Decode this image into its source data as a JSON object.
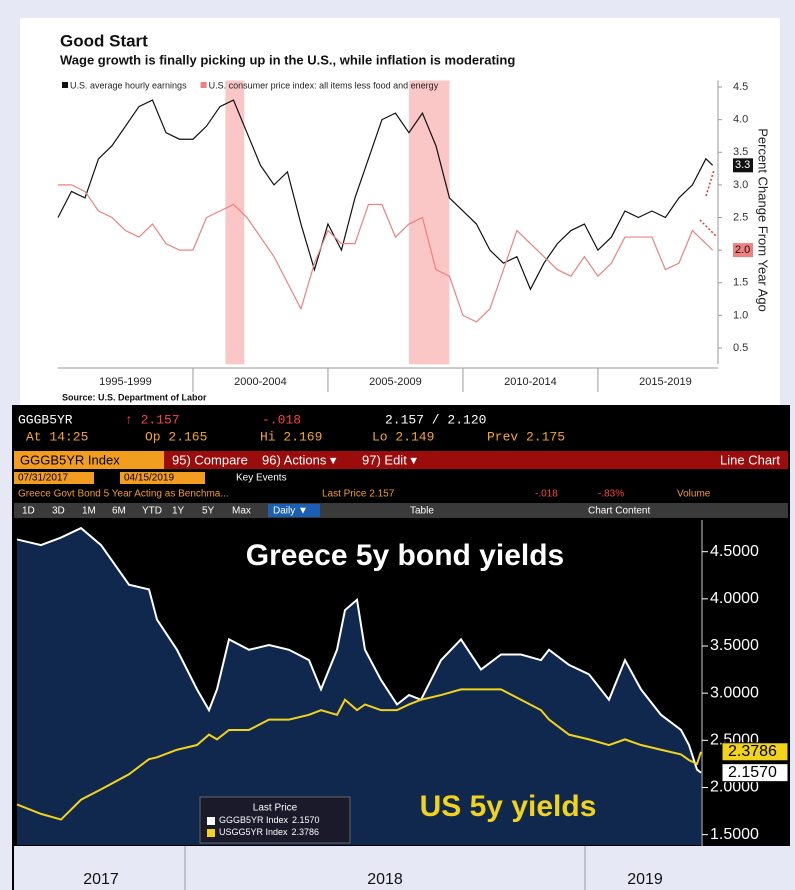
{
  "chart_data": [
    {
      "type": "line",
      "title": "Good Start",
      "subtitle": "Wage growth is finally picking up in the U.S., while inflation is moderating",
      "source": "Source: U.S. Department of Labor",
      "y_axis_label": "Percent Change From Year Ago",
      "xlim": [
        1995,
        2019.3
      ],
      "xticks": [
        {
          "value": 1997.5,
          "label": "1995-1999"
        },
        {
          "value": 2002.5,
          "label": "2000-2004"
        },
        {
          "value": 2007.5,
          "label": "2005-2009"
        },
        {
          "value": 2012.5,
          "label": "2010-2014"
        },
        {
          "value": 2017.5,
          "label": "2015-2019"
        }
      ],
      "ylim": [
        0.25,
        4.6
      ],
      "yticks": [
        0.5,
        {
          "value": 1,
          "label": "1.0"
        },
        1.5,
        {
          "value": 2,
          "label": "2.0"
        },
        2.5,
        {
          "value": 3,
          "label": "3.0"
        },
        3.5,
        {
          "value": 4,
          "label": "4.0"
        },
        4.5
      ],
      "shaded_ranges": [
        [
          2001.2,
          2001.9
        ],
        [
          2008.0,
          2009.5
        ]
      ],
      "x": [
        1995,
        1995.5,
        1996,
        1996.5,
        1997,
        1997.5,
        1998,
        1998.5,
        1999,
        1999.5,
        2000,
        2000.5,
        2001,
        2001.5,
        2002,
        2002.5,
        2003,
        2003.5,
        2004,
        2004.5,
        2005,
        2005.5,
        2006,
        2006.5,
        2007,
        2007.5,
        2008,
        2008.5,
        2009,
        2009.5,
        2010,
        2010.5,
        2011,
        2011.5,
        2012,
        2012.5,
        2013,
        2013.5,
        2014,
        2014.5,
        2015,
        2015.5,
        2016,
        2016.5,
        2017,
        2017.5,
        2018,
        2018.5,
        2019,
        2019.25
      ],
      "series": [
        {
          "name": "U.S. average hourly earnings",
          "color": "#111111",
          "values": [
            2.5,
            2.9,
            2.8,
            3.4,
            3.6,
            3.9,
            4.2,
            4.3,
            3.8,
            3.7,
            3.7,
            3.9,
            4.2,
            4.3,
            3.8,
            3.3,
            3.0,
            3.2,
            2.4,
            1.7,
            2.4,
            2.0,
            2.8,
            3.4,
            4.0,
            4.1,
            3.8,
            4.1,
            3.6,
            2.8,
            2.6,
            2.4,
            2.0,
            1.8,
            1.9,
            1.4,
            1.8,
            2.1,
            2.3,
            2.4,
            2.0,
            2.2,
            2.6,
            2.5,
            2.6,
            2.5,
            2.8,
            3.0,
            3.4,
            3.3
          ],
          "last_label": {
            "value": 3.3,
            "label": "3.3"
          }
        },
        {
          "name": "U.S. consumer price index: all items less food and energy",
          "color": "#f08080",
          "values": [
            3.0,
            3.0,
            2.9,
            2.6,
            2.5,
            2.3,
            2.2,
            2.4,
            2.1,
            2.0,
            2.0,
            2.5,
            2.6,
            2.7,
            2.5,
            2.2,
            1.9,
            1.5,
            1.1,
            1.8,
            2.3,
            2.1,
            2.1,
            2.7,
            2.7,
            2.2,
            2.4,
            2.5,
            1.7,
            1.6,
            1.0,
            0.9,
            1.1,
            1.7,
            2.3,
            2.1,
            1.9,
            1.7,
            1.6,
            1.9,
            1.6,
            1.8,
            2.2,
            2.2,
            2.2,
            1.7,
            1.8,
            2.3,
            2.1,
            2.0
          ],
          "last_label": {
            "value": 2.0,
            "label": "2.0"
          }
        }
      ]
    },
    {
      "type": "line",
      "annotations": [
        "Greece 5y bond yields",
        "US 5y yields"
      ],
      "legend_title": "Last Price",
      "xlim": [
        2017.575,
        2019.29
      ],
      "xticks": [
        {
          "value": 2017.79,
          "label": "2017"
        },
        {
          "value": 2018.5,
          "label": "2018"
        },
        {
          "value": 2019.15,
          "label": "2019"
        }
      ],
      "xgrid": [
        2018,
        2019
      ],
      "ylim": [
        1.39,
        4.73
      ],
      "yticks": [
        {
          "value": 1.5,
          "label": "1.5000"
        },
        {
          "value": 2,
          "label": "2.0000"
        },
        {
          "value": 2.5,
          "label": "2.5000"
        },
        {
          "value": 3,
          "label": "3.0000"
        },
        {
          "value": 3.5,
          "label": "3.5000"
        },
        {
          "value": 4,
          "label": "4.0000"
        },
        {
          "value": 4.5,
          "label": "4.5000"
        }
      ],
      "x": [
        2017.58,
        2017.64,
        2017.69,
        2017.74,
        2017.79,
        2017.86,
        2017.91,
        2017.93,
        2017.98,
        2018.03,
        2018.06,
        2018.08,
        2018.11,
        2018.16,
        2018.21,
        2018.26,
        2018.31,
        2018.34,
        2018.38,
        2018.4,
        2018.43,
        2018.45,
        2018.49,
        2018.53,
        2018.56,
        2018.59,
        2018.64,
        2018.69,
        2018.74,
        2018.79,
        2018.84,
        2018.89,
        2018.91,
        2018.96,
        2019.01,
        2019.06,
        2019.1,
        2019.14,
        2019.19,
        2019.24,
        2019.26,
        2019.28,
        2019.29
      ],
      "series": [
        {
          "name": "GGGB5YR Index",
          "color": "#ffffff",
          "fill": "#10284d",
          "values": [
            4.63,
            4.57,
            4.65,
            4.75,
            4.57,
            4.15,
            4.1,
            3.78,
            3.46,
            3.04,
            2.82,
            3.04,
            3.57,
            3.46,
            3.51,
            3.46,
            3.35,
            3.04,
            3.46,
            3.88,
            3.99,
            3.46,
            3.14,
            2.88,
            2.98,
            2.93,
            3.35,
            3.57,
            3.25,
            3.41,
            3.41,
            3.35,
            3.46,
            3.3,
            3.2,
            2.93,
            3.35,
            3.04,
            2.77,
            2.61,
            2.45,
            2.19,
            2.157
          ],
          "last_label": {
            "value": 2.157,
            "label": "2.1570"
          }
        },
        {
          "name": "USGG5YR Index",
          "color": "#f2d31b",
          "values": [
            1.82,
            1.72,
            1.66,
            1.87,
            1.98,
            2.14,
            2.3,
            2.32,
            2.4,
            2.45,
            2.56,
            2.51,
            2.61,
            2.61,
            2.72,
            2.72,
            2.77,
            2.82,
            2.77,
            2.93,
            2.82,
            2.88,
            2.82,
            2.82,
            2.88,
            2.93,
            2.98,
            3.04,
            3.04,
            3.04,
            2.93,
            2.82,
            2.72,
            2.56,
            2.51,
            2.45,
            2.51,
            2.45,
            2.4,
            2.35,
            2.29,
            2.25,
            2.3786
          ],
          "last_label": {
            "value": 2.3786,
            "label": "2.3786"
          }
        }
      ]
    }
  ],
  "terminal": {
    "ticker": "GGGB5YR",
    "last": "↑ 2.157",
    "change": "-.018",
    "bid_ask": "2.157 / 2.120",
    "time": "At 14:25",
    "open": "Op 2.165",
    "high": "Hi 2.169",
    "low": "Lo 2.149",
    "prev": "Prev 2.175",
    "menu": [
      "GGGB5YR Index",
      "95) Compare",
      "96) Actions ▾",
      "97) Edit ▾"
    ],
    "view": "Line Chart",
    "start_date": "07/31/2017",
    "end_date": "04/15/2019",
    "key_events": "Key Events",
    "security": "Greece Govt Bond 5 Year Acting as Benchma...",
    "last_price": "Last Price 2.157",
    "net_change": "-.018",
    "pct_change": "-.83%",
    "volume": "Volume",
    "periods": [
      "1D",
      "3D",
      "1M",
      "6M",
      "YTD",
      "1Y",
      "5Y",
      "Max"
    ],
    "frequency": "Daily ▼",
    "table": "Table",
    "chart_content": "Chart Content"
  }
}
